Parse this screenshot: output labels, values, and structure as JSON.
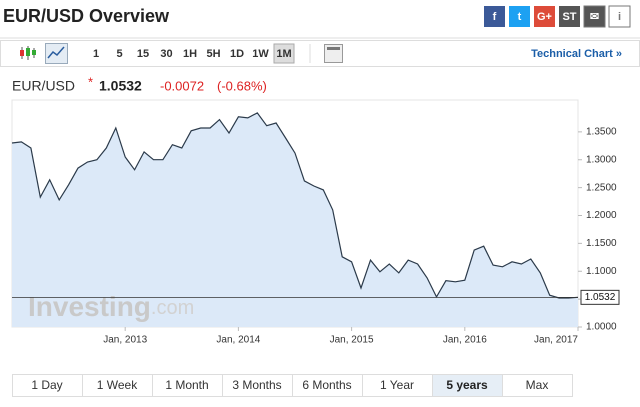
{
  "header": {
    "title": "EUR/USD Overview",
    "share": [
      "f",
      "t",
      "G+",
      "ST",
      "✉",
      "i"
    ]
  },
  "toolbar": {
    "timeframes": [
      "1",
      "5",
      "15",
      "30",
      "1H",
      "5H",
      "1D",
      "1W",
      "1M"
    ],
    "active": "1M",
    "technical": "Technical Chart »"
  },
  "quote": {
    "symbol": "EUR/USD",
    "marker": "*",
    "price": 1.0532,
    "change": -0.0072,
    "change_pct": "(-0.68%)"
  },
  "ranges": {
    "items": [
      "1 Day",
      "1 Week",
      "1 Month",
      "3 Months",
      "6 Months",
      "1 Year",
      "5 years",
      "Max"
    ],
    "active": "5 years"
  },
  "watermark": {
    "brand": "Investing",
    "suffix": ".com"
  },
  "chart_data": {
    "type": "area",
    "x": [
      "2012-01",
      "2012-02",
      "2012-03",
      "2012-04",
      "2012-05",
      "2012-06",
      "2012-07",
      "2012-08",
      "2012-09",
      "2012-10",
      "2012-11",
      "2012-12",
      "2013-01",
      "2013-02",
      "2013-03",
      "2013-04",
      "2013-05",
      "2013-06",
      "2013-07",
      "2013-08",
      "2013-09",
      "2013-10",
      "2013-11",
      "2013-12",
      "2014-01",
      "2014-02",
      "2014-03",
      "2014-04",
      "2014-05",
      "2014-06",
      "2014-07",
      "2014-08",
      "2014-09",
      "2014-10",
      "2014-11",
      "2014-12",
      "2015-01",
      "2015-02",
      "2015-03",
      "2015-04",
      "2015-05",
      "2015-06",
      "2015-07",
      "2015-08",
      "2015-09",
      "2015-10",
      "2015-11",
      "2015-12",
      "2016-01",
      "2016-02",
      "2016-03",
      "2016-04",
      "2016-05",
      "2016-06",
      "2016-07",
      "2016-08",
      "2016-09",
      "2016-10",
      "2016-11",
      "2016-12",
      "2017-01"
    ],
    "values": [
      1.33,
      1.332,
      1.321,
      1.233,
      1.264,
      1.228,
      1.255,
      1.285,
      1.296,
      1.3,
      1.321,
      1.357,
      1.305,
      1.282,
      1.314,
      1.3,
      1.3,
      1.327,
      1.321,
      1.352,
      1.357,
      1.357,
      1.372,
      1.348,
      1.377,
      1.375,
      1.384,
      1.361,
      1.366,
      1.339,
      1.312,
      1.262,
      1.253,
      1.246,
      1.21,
      1.126,
      1.117,
      1.07,
      1.12,
      1.099,
      1.113,
      1.097,
      1.12,
      1.113,
      1.088,
      1.054,
      1.083,
      1.081,
      1.084,
      1.138,
      1.145,
      1.111,
      1.108,
      1.117,
      1.113,
      1.122,
      1.097,
      1.057,
      1.052,
      1.052,
      1.0532
    ],
    "color": "#2b3a4a",
    "fill": "#dce9f8",
    "xlim": [
      "2012-01",
      "2017-01"
    ],
    "xticks": [
      {
        "value": "2013-01",
        "label": "Jan, 2013"
      },
      {
        "value": "2014-01",
        "label": "Jan, 2014"
      },
      {
        "value": "2015-01",
        "label": "Jan, 2015"
      },
      {
        "value": "2016-01",
        "label": "Jan, 2016"
      },
      {
        "value": "2017-01",
        "label": "Jan, 2017"
      }
    ],
    "ylim": [
      1.0,
      1.4
    ],
    "yticks": [
      {
        "value": 1.0,
        "label": "1.0000"
      },
      {
        "value": 1.05,
        "label": "1.0500"
      },
      {
        "value": 1.1,
        "label": "1.1000"
      },
      {
        "value": 1.15,
        "label": "1.1500"
      },
      {
        "value": 1.2,
        "label": "1.2000"
      },
      {
        "value": 1.25,
        "label": "1.2500"
      },
      {
        "value": 1.3,
        "label": "1.3000"
      },
      {
        "value": 1.35,
        "label": "1.3500"
      }
    ]
  }
}
